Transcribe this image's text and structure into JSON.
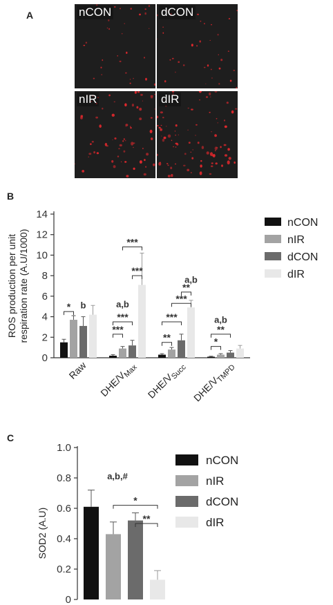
{
  "panels": {
    "a": "A",
    "b": "B",
    "c": "C"
  },
  "images": {
    "nCON": {
      "label": "nCON",
      "density": 0.35
    },
    "dCON": {
      "label": "dCON",
      "density": 0.4
    },
    "nIR": {
      "label": "nIR",
      "density": 0.75
    },
    "dIR": {
      "label": "dIR",
      "density": 1.0
    }
  },
  "colors": {
    "nCON": "#111111",
    "nIR": "#a3a3a3",
    "dCON": "#6b6b6b",
    "dIR": "#e8e8e8",
    "signal": "#e0282d"
  },
  "chart_data": [
    {
      "type": "bar",
      "ylabel": "ROS production per unit respiration rate (A.U/1000)",
      "ylabel_lines": [
        "ROS production per unit",
        "respiration rate (A.U/1000)"
      ],
      "ylim": [
        0,
        14
      ],
      "yticks": [
        "0",
        "2",
        "4",
        "6",
        "8",
        "10",
        "12",
        "14"
      ],
      "categories": [
        "Raw",
        "DHE/V_Max",
        "DHE/V_Succ",
        "DHE/V_TMPD"
      ],
      "category_labels": [
        {
          "main": "Raw",
          "sub": ""
        },
        {
          "main": "DHE/V",
          "sub": "Max"
        },
        {
          "main": "DHE/V",
          "sub": "Succ"
        },
        {
          "main": "DHE/V",
          "sub": "TMPD"
        }
      ],
      "series": [
        {
          "name": "nCON",
          "values": [
            1.5,
            0.2,
            0.3,
            0.1
          ],
          "errors": [
            0.3,
            0.1,
            0.1,
            0.05
          ]
        },
        {
          "name": "nIR",
          "values": [
            3.7,
            0.9,
            0.8,
            0.3
          ],
          "errors": [
            0.4,
            0.2,
            0.2,
            0.1
          ]
        },
        {
          "name": "dCON",
          "values": [
            3.1,
            1.2,
            1.7,
            0.5
          ],
          "errors": [
            0.9,
            0.5,
            0.6,
            0.2
          ]
        },
        {
          "name": "dIR",
          "values": [
            4.2,
            7.1,
            4.9,
            0.9
          ],
          "errors": [
            0.9,
            3.1,
            0.7,
            0.3
          ]
        }
      ],
      "annotations": [
        {
          "text": "*",
          "cat": 0,
          "from": 0,
          "to": 1,
          "y": 4.5
        },
        {
          "text": "b",
          "cat": 0,
          "at": 2,
          "y": 4.8,
          "type": "label"
        },
        {
          "text": "***",
          "cat": 1,
          "from": 0,
          "to": 1,
          "y": 2.3
        },
        {
          "text": "***",
          "cat": 1,
          "from": 0,
          "to": 2,
          "y": 3.5
        },
        {
          "text": "a,b",
          "cat": 1,
          "at": 1,
          "y": 4.9,
          "type": "label"
        },
        {
          "text": "***",
          "cat": 1,
          "from": 2,
          "to": 3,
          "y": 8.0
        },
        {
          "text": "***",
          "cat": 1,
          "from": 1,
          "to": 3,
          "y": 10.8
        },
        {
          "text": "**",
          "cat": 2,
          "from": 0,
          "to": 1,
          "y": 1.5
        },
        {
          "text": "***",
          "cat": 2,
          "from": 0,
          "to": 2,
          "y": 3.5
        },
        {
          "text": "***",
          "cat": 2,
          "from": 1,
          "to": 3,
          "y": 5.3
        },
        {
          "text": "**",
          "cat": 2,
          "from": 2,
          "to": 3,
          "y": 6.4
        },
        {
          "text": "a,b",
          "cat": 2,
          "at": 3,
          "y": 7.3,
          "type": "label"
        },
        {
          "text": "*",
          "cat": 3,
          "from": 0,
          "to": 1,
          "y": 1.1
        },
        {
          "text": "**",
          "cat": 3,
          "from": 0,
          "to": 2,
          "y": 2.3
        },
        {
          "text": "a,b",
          "cat": 3,
          "at": 1,
          "y": 3.4,
          "type": "label"
        }
      ],
      "legend": {
        "position": "right",
        "entries": [
          "nCON",
          "nIR",
          "dCON",
          "dIR"
        ]
      }
    },
    {
      "type": "bar",
      "ylabel": "SOD2 (A.U)",
      "ylim": [
        0,
        1.0
      ],
      "yticks": [
        "0",
        "0.2",
        "0.4",
        "0.6",
        "0.8",
        "1.0"
      ],
      "categories": [
        "nCON",
        "nIR",
        "dCON",
        "dIR"
      ],
      "series": [
        {
          "name": "SOD2",
          "values": [
            0.61,
            0.43,
            0.52,
            0.13
          ],
          "errors": [
            0.11,
            0.08,
            0.05,
            0.06
          ]
        }
      ],
      "annotations": [
        {
          "text": "a,b,#",
          "at": 1,
          "y": 0.79,
          "type": "label"
        },
        {
          "text": "*",
          "from": 1,
          "to": 3,
          "y": 0.62
        },
        {
          "text": "**",
          "from": 2,
          "to": 3,
          "y": 0.5
        }
      ],
      "legend": {
        "position": "right",
        "entries": [
          "nCON",
          "nIR",
          "dCON",
          "dIR"
        ]
      }
    }
  ]
}
